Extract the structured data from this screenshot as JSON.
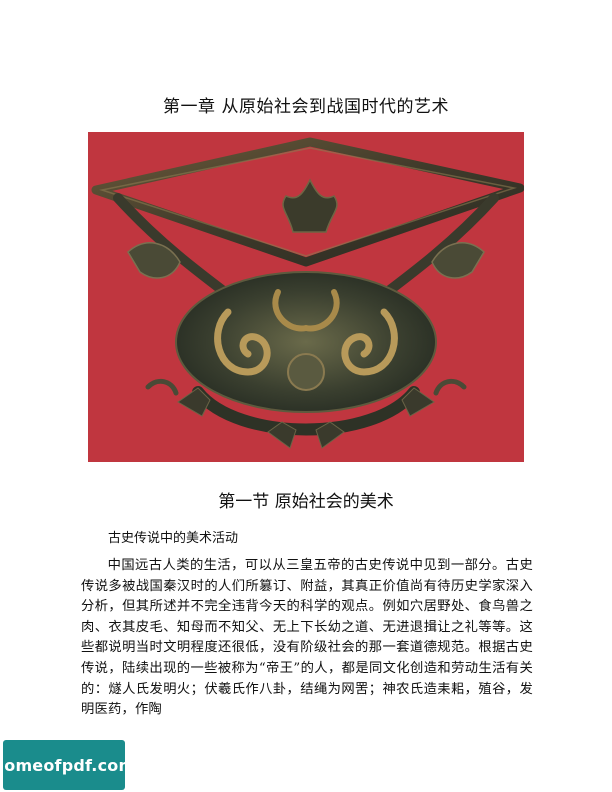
{
  "chapter": {
    "title": "第一章  从原始社会到战国时代的艺术"
  },
  "figure": {
    "description_icon": "bronze-artifact-photo"
  },
  "section": {
    "title": "第一节  原始社会的美术"
  },
  "subsection": {
    "title": "古史传说中的美术活动"
  },
  "body": {
    "paragraph": "中国远古人类的生活，可以从三皇五帝的古史传说中见到一部分。古史传说多被战国秦汉时的人们所篡订、附益，其真正价值尚有待历史学家深入分析，但其所述并不完全违背今天的科学的观点。例如穴居野处、食鸟兽之肉、衣其皮毛、知母而不知父、无上下长幼之道、无进退揖让之礼等等。这些都说明当时文明程度还很低，没有阶级社会的那一套道德规范。根据古史传说，陆续出现的一些被称为“帝王”的人，都是同文化创造和劳动生活有关的：燧人氏发明火；伏羲氏作八卦，结绳为网罟；神农氏造耒耜，殖谷，发明医药，作陶"
  },
  "watermark": {
    "text": "homeofpdf.com"
  }
}
